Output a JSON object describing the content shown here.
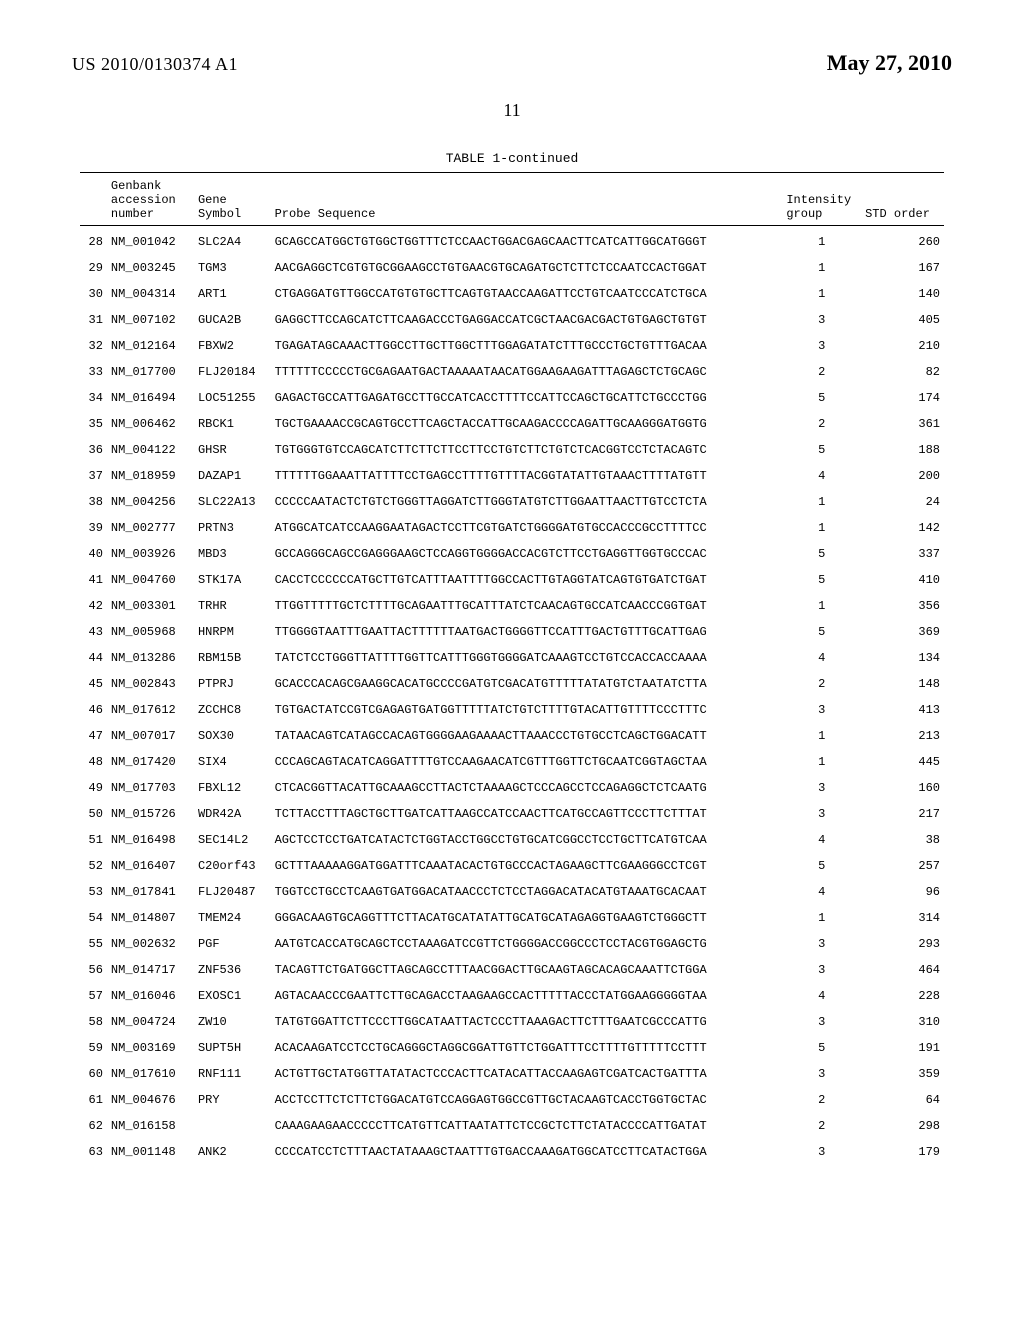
{
  "header": {
    "pub_number": "US 2010/0130374 A1",
    "pub_date": "May 27, 2010",
    "page_number": "11"
  },
  "table": {
    "caption": "TABLE 1-continued",
    "columns": {
      "accession_l1": "Genbank",
      "accession_l2": "accession",
      "accession_l3": "number",
      "gene_l1": "Gene",
      "gene_l2": "Symbol",
      "probe": "Probe Sequence",
      "intensity_l1": "Intensity",
      "intensity_l2": "group",
      "std_order": "STD order"
    },
    "rows": [
      {
        "idx": "28",
        "acc": "NM_001042",
        "sym": "SLC2A4",
        "seq": "GCAGCCATGGCTGTGGCTGGTTTCTCCAACTGGACGAGCAACTTCATCATTGGCATGGGT",
        "grp": "1",
        "ord": "260"
      },
      {
        "idx": "29",
        "acc": "NM_003245",
        "sym": "TGM3",
        "seq": "AACGAGGCTCGTGTGCGGAAGCCTGTGAACGTGCAGATGCTCTTCTCCAATCCACTGGAT",
        "grp": "1",
        "ord": "167"
      },
      {
        "idx": "30",
        "acc": "NM_004314",
        "sym": "ART1",
        "seq": "CTGAGGATGTTGGCCATGTGTGCTTCAGTGTAACCAAGATTCCTGTCAATCCCATCTGCA",
        "grp": "1",
        "ord": "140"
      },
      {
        "idx": "31",
        "acc": "NM_007102",
        "sym": "GUCA2B",
        "seq": "GAGGCTTCCAGCATCTTCAAGACCCTGAGGACCATCGCTAACGACGACTGTGAGCTGTGT",
        "grp": "3",
        "ord": "405"
      },
      {
        "idx": "32",
        "acc": "NM_012164",
        "sym": "FBXW2",
        "seq": "TGAGATAGCAAACTTGGCCTTGCTTGGCTTTGGAGATATCTTTGCCCTGCTGTTTGACAA",
        "grp": "3",
        "ord": "210"
      },
      {
        "idx": "33",
        "acc": "NM_017700",
        "sym": "FLJ20184",
        "seq": "TTTTTTCCCCCTGCGAGAATGACTAAAAATAACATGGAAGAAGATTTAGAGCTCTGCAGC",
        "grp": "2",
        "ord": "82"
      },
      {
        "idx": "34",
        "acc": "NM_016494",
        "sym": "LOC51255",
        "seq": "GAGACTGCCATTGAGATGCCTTGCCATCACCTTTTCCATTCCAGCTGCATTCTGCCCTGG",
        "grp": "5",
        "ord": "174"
      },
      {
        "idx": "35",
        "acc": "NM_006462",
        "sym": "RBCK1",
        "seq": "TGCTGAAAACCGCAGTGCCTTCAGCTACCATTGCAAGACCCCAGATTGCAAGGGATGGTG",
        "grp": "2",
        "ord": "361"
      },
      {
        "idx": "36",
        "acc": "NM_004122",
        "sym": "GHSR",
        "seq": "TGTGGGTGTCCAGCATCTTCTTCTTCCTTCCTGTCTTCTGTCTCACGGTCCTCTACAGTC",
        "grp": "5",
        "ord": "188"
      },
      {
        "idx": "37",
        "acc": "NM_018959",
        "sym": "DAZAP1",
        "seq": "TTTTTTGGAAATTATTTTCCTGAGCCTTTTGTTTTACGGTATATTGTAAACTTTTATGTT",
        "grp": "4",
        "ord": "200"
      },
      {
        "idx": "38",
        "acc": "NM_004256",
        "sym": "SLC22A13",
        "seq": "CCCCCAATACTCTGTCTGGGTTAGGATCTTGGGTATGTCTTGGAATTAACTTGTCCTCTA",
        "grp": "1",
        "ord": "24"
      },
      {
        "idx": "39",
        "acc": "NM_002777",
        "sym": "PRTN3",
        "seq": "ATGGCATCATCCAAGGAATAGACTCCTTCGTGATCTGGGGATGTGCCACCCGCCTTTTCC",
        "grp": "1",
        "ord": "142"
      },
      {
        "idx": "40",
        "acc": "NM_003926",
        "sym": "MBD3",
        "seq": "GCCAGGGCAGCCGAGGGAAGCTCCAGGTGGGGACCACGTCTTCCTGAGGTTGGTGCCCAC",
        "grp": "5",
        "ord": "337"
      },
      {
        "idx": "41",
        "acc": "NM_004760",
        "sym": "STK17A",
        "seq": "CACCTCCCCCCATGCTTGTCATTTAATTTTGGCCACTTGTAGGTATCAGTGTGATCTGAT",
        "grp": "5",
        "ord": "410"
      },
      {
        "idx": "42",
        "acc": "NM_003301",
        "sym": "TRHR",
        "seq": "TTGGTTTTTGCTCTTTTGCAGAATTTGCATTTATCTCAACAGTGCCATCAACCCGGTGAT",
        "grp": "1",
        "ord": "356"
      },
      {
        "idx": "43",
        "acc": "NM_005968",
        "sym": "HNRPM",
        "seq": "TTGGGGTAATTTGAATTACTTTTTTAATGACTGGGGTTCCATTTGACTGTTTGCATTGAG",
        "grp": "5",
        "ord": "369"
      },
      {
        "idx": "44",
        "acc": "NM_013286",
        "sym": "RBM15B",
        "seq": "TATCTCCTGGGTTATTTTGGTTCATTTGGGTGGGGATCAAAGTCCTGTCCACCACCAAAA",
        "grp": "4",
        "ord": "134"
      },
      {
        "idx": "45",
        "acc": "NM_002843",
        "sym": "PTPRJ",
        "seq": "GCACCCACAGCGAAGGCACATGCCCCGATGTCGACATGTTTTTATATGTCTAATATCTTA",
        "grp": "2",
        "ord": "148"
      },
      {
        "idx": "46",
        "acc": "NM_017612",
        "sym": "ZCCHC8",
        "seq": "TGTGACTATCCGTCGAGAGTGATGGTTTTTATCTGTCTTTTGTACATTGTTTTCCCTTTC",
        "grp": "3",
        "ord": "413"
      },
      {
        "idx": "47",
        "acc": "NM_007017",
        "sym": "SOX30",
        "seq": "TATAACAGTCATAGCCACAGTGGGGAAGAAAACTTAAACCCTGTGCCTCAGCTGGACATT",
        "grp": "1",
        "ord": "213"
      },
      {
        "idx": "48",
        "acc": "NM_017420",
        "sym": "SIX4",
        "seq": "CCCAGCAGTACATCAGGATTTTGTCCAAGAACATCGTTTGGTTCTGCAATCGGTAGCTAA",
        "grp": "1",
        "ord": "445"
      },
      {
        "idx": "49",
        "acc": "NM_017703",
        "sym": "FBXL12",
        "seq": "CTCACGGTTACATTGCAAAGCCTTACTCTAAAAGCTCCCAGCCTCCAGAGGCTCTCAATG",
        "grp": "3",
        "ord": "160"
      },
      {
        "idx": "50",
        "acc": "NM_015726",
        "sym": "WDR42A",
        "seq": "TCTTACCTTTAGCTGCTTGATCATTAAGCCATCCAACTTCATGCCAGTTCCCTTCTTTAT",
        "grp": "3",
        "ord": "217"
      },
      {
        "idx": "51",
        "acc": "NM_016498",
        "sym": "SEC14L2",
        "seq": "AGCTCCTCCTGATCATACTCTGGTACCTGGCCTGTGCATCGGCCTCCTGCTTCATGTCAA",
        "grp": "4",
        "ord": "38"
      },
      {
        "idx": "52",
        "acc": "NM_016407",
        "sym": "C20orf43",
        "seq": "GCTTTAAAAAGGATGGATTTCAAATACACTGTGCCCACTAGAAGCTTCGAAGGGCCTCGT",
        "grp": "5",
        "ord": "257"
      },
      {
        "idx": "53",
        "acc": "NM_017841",
        "sym": "FLJ20487",
        "seq": "TGGTCCTGCCTCAAGTGATGGACATAACCCTCTCCTAGGACATACATGTAAATGCACAAT",
        "grp": "4",
        "ord": "96"
      },
      {
        "idx": "54",
        "acc": "NM_014807",
        "sym": "TMEM24",
        "seq": "GGGACAAGTGCAGGTTTCTTACATGCATATATTGCATGCATAGAGGTGAAGTCTGGGCTT",
        "grp": "1",
        "ord": "314"
      },
      {
        "idx": "55",
        "acc": "NM_002632",
        "sym": "PGF",
        "seq": "AATGTCACCATGCAGCTCCTAAAGATCCGTTCTGGGGACCGGCCCTCCTACGTGGAGCTG",
        "grp": "3",
        "ord": "293"
      },
      {
        "idx": "56",
        "acc": "NM_014717",
        "sym": "ZNF536",
        "seq": "TACAGTTCTGATGGCTTAGCAGCCTTTAACGGACTTGCAAGTAGCACAGCAAATTCTGGA",
        "grp": "3",
        "ord": "464"
      },
      {
        "idx": "57",
        "acc": "NM_016046",
        "sym": "EXOSC1",
        "seq": "AGTACAACCCGAATTCTTGCAGACCTAAGAAGCCACTTTTTACCCTATGGAAGGGGGTAA",
        "grp": "4",
        "ord": "228"
      },
      {
        "idx": "58",
        "acc": "NM_004724",
        "sym": "ZW10",
        "seq": "TATGTGGATTCTTCCCTTGGCATAATTACTCCCTTAAAGACTTCTTTGAATCGCCCATTG",
        "grp": "3",
        "ord": "310"
      },
      {
        "idx": "59",
        "acc": "NM_003169",
        "sym": "SUPT5H",
        "seq": "ACACAAGATCCTCCTGCAGGGCTAGGCGGATTGTTCTGGATTTCCTTTTGTTTTTCCTTT",
        "grp": "5",
        "ord": "191"
      },
      {
        "idx": "60",
        "acc": "NM_017610",
        "sym": "RNF111",
        "seq": "ACTGTTGCTATGGTTATATACTCCCACTTCATACATTACCAAGAGTCGATCACTGATTTA",
        "grp": "3",
        "ord": "359"
      },
      {
        "idx": "61",
        "acc": "NM_004676",
        "sym": "PRY",
        "seq": "ACCTCCTTCTCTTCTGGACATGTCCAGGAGTGGCCGTTGCTACAAGTCACCTGGTGCTAC",
        "grp": "2",
        "ord": "64"
      },
      {
        "idx": "62",
        "acc": "NM_016158",
        "sym": "",
        "seq": "CAAAGAAGAACCCCCTTCATGTTCATTAATATTCTCCGCTCTTCTATACCCCATTGATAT",
        "grp": "2",
        "ord": "298"
      },
      {
        "idx": "63",
        "acc": "NM_001148",
        "sym": "ANK2",
        "seq": "CCCCATCCTCTTTAACTATAAAGCTAATTTGTGACCAAAGATGGCATCCTTCATACTGGA",
        "grp": "3",
        "ord": "179"
      }
    ]
  }
}
